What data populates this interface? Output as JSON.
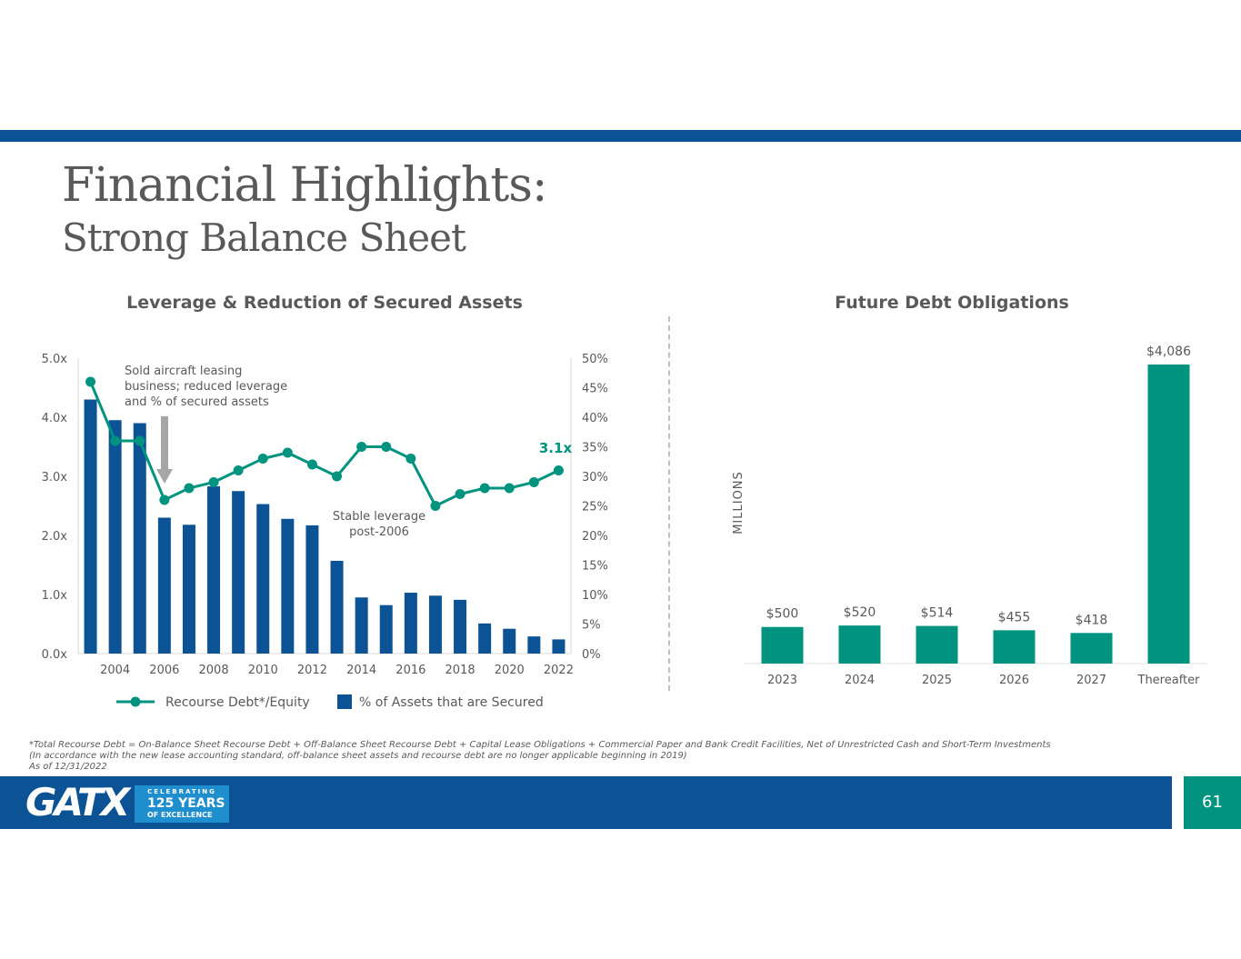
{
  "slide": {
    "title": "Financial Highlights:",
    "subtitle": "Strong Balance Sheet",
    "page_number": "61"
  },
  "colors": {
    "brand_blue": "#0b5394",
    "teal": "#00937f",
    "text_gray": "#595959",
    "badge_blue": "#1f8ecf"
  },
  "logo": {
    "brand": "GATX",
    "badge_top": "CELEBRATING",
    "badge_mid": "125 YEARS",
    "badge_bottom": "OF EXCELLENCE"
  },
  "footnotes": [
    "*Total Recourse Debt = On-Balance Sheet Recourse Debt + Off-Balance Sheet Recourse Debt + Capital Lease Obligations + Commercial Paper and Bank Credit Facilities, Net of Unrestricted Cash and Short-Term Investments",
    "(In accordance with the new lease accounting standard, off-balance sheet assets and recourse debt are no longer applicable beginning in 2019)",
    "As of 12/31/2022"
  ],
  "chart_data": [
    {
      "type": "bar+line",
      "title": "Leverage & Reduction of Secured Assets",
      "years": [
        2003,
        2004,
        2005,
        2006,
        2007,
        2008,
        2009,
        2010,
        2011,
        2012,
        2013,
        2014,
        2015,
        2016,
        2017,
        2018,
        2019,
        2020,
        2021,
        2022
      ],
      "x_tick_labels": [
        "2004",
        "2006",
        "2008",
        "2010",
        "2012",
        "2014",
        "2016",
        "2018",
        "2020",
        "2022"
      ],
      "series": [
        {
          "name": "% of Assets that are Secured",
          "type": "bar",
          "axis": "right",
          "values": [
            43,
            39.5,
            39,
            23,
            21.8,
            28.3,
            27.5,
            25.3,
            22.8,
            21.7,
            15.7,
            9.5,
            8.2,
            10.3,
            9.8,
            9.1,
            5.1,
            4.2,
            2.9,
            2.4
          ]
        },
        {
          "name": "Recourse Debt*/Equity",
          "type": "line",
          "axis": "left",
          "values": [
            4.6,
            3.6,
            3.6,
            2.6,
            2.8,
            2.9,
            3.1,
            3.3,
            3.4,
            3.2,
            3.0,
            3.5,
            3.5,
            3.3,
            2.5,
            2.7,
            2.8,
            2.8,
            2.9,
            3.1
          ]
        }
      ],
      "left_axis": {
        "ticks": [
          "0.0x",
          "1.0x",
          "2.0x",
          "3.0x",
          "4.0x",
          "5.0x"
        ],
        "ylim": [
          0,
          5
        ]
      },
      "right_axis": {
        "ticks": [
          "0%",
          "5%",
          "10%",
          "15%",
          "20%",
          "25%",
          "30%",
          "35%",
          "40%",
          "45%",
          "50%"
        ],
        "ylim": [
          0,
          50
        ]
      },
      "annotations": {
        "sold_aircraft": [
          "Sold aircraft leasing",
          "business; reduced leverage",
          "and % of secured assets"
        ],
        "stable_leverage": [
          "Stable leverage",
          "post-2006"
        ],
        "end_label": "3.1x"
      },
      "legend_position": "bottom"
    },
    {
      "type": "bar",
      "title": "Future Debt Obligations",
      "ylabel": "MILLIONS",
      "categories": [
        "2023",
        "2024",
        "2025",
        "2026",
        "2027",
        "Thereafter"
      ],
      "values": [
        500,
        520,
        514,
        455,
        418,
        4086
      ],
      "value_labels": [
        "$500",
        "$520",
        "$514",
        "$455",
        "$418",
        "$4,086"
      ]
    }
  ]
}
